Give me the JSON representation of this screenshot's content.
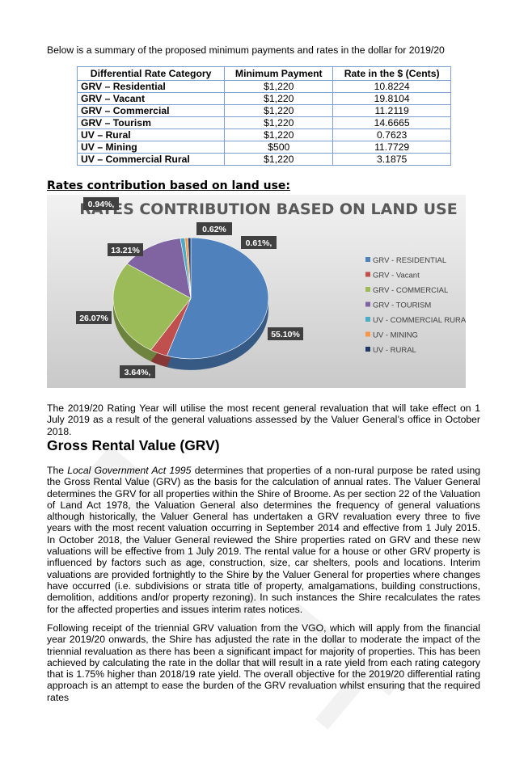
{
  "intro": "Below is a summary of the proposed minimum payments and rates in the dollar for 2019/20",
  "table": {
    "header": [
      "Differential Rate Category",
      "Minimum Payment",
      "Rate in the $ (Cents)"
    ],
    "rows": [
      [
        "GRV – Residential",
        "$1,220",
        "10.8224"
      ],
      [
        "GRV – Vacant",
        "$1,220",
        "19.8104"
      ],
      [
        "GRV – Commercial",
        "$1,220",
        "11.2119"
      ],
      [
        "GRV – Tourism",
        "$1,220",
        "14.6665"
      ],
      [
        "UV – Rural",
        "$1,220",
        "0.7623"
      ],
      [
        "UV – Mining",
        "$500",
        "11.7729"
      ],
      [
        "UV – Commercial Rural",
        "$1,220",
        "3.1875"
      ]
    ]
  },
  "chart_heading": "Rates contribution based on land use:",
  "chart": {
    "type": "pie",
    "title": "RATES CONTRIBUTION BASED ON LAND USE",
    "categories": [
      "GRV - RESIDENTIAL",
      "GRV - Vacant",
      "GRV - COMMERCIAL",
      "GRV - TOURISM",
      "UV - COMMERCIAL RURAL",
      "UV - MINING",
      "UV - RURAL"
    ],
    "values": [
      55.1,
      3.64,
      26.07,
      13.21,
      0.94,
      0.62,
      0.61
    ],
    "value_labels": [
      "55.10%",
      "3.64%,",
      "26.07%",
      "13.21%",
      "0.94%,",
      "0.62%",
      "0.61%,"
    ],
    "colors": [
      "#4f81bd",
      "#c0504d",
      "#9bbb59",
      "#8064a2",
      "#4bacc6",
      "#f79646",
      "#1f3864"
    ],
    "legend": "right"
  },
  "paragraph_1": "The 2019/20 Rating Year will utilise the most recent general revaluation that will take effect on 1 July 2019 as a result of the general valuations assessed by the Valuer General’s office in October 2018.",
  "section_heading": "Gross Rental Value (GRV)",
  "paragraph_2": [
    "The ",
    "Local Government Act 1995",
    " determines that properties of a non-rural purpose be rated using the Gross Rental Value (GRV) as the basis for the calculation of annual rates. The Valuer General determines the GRV for all properties within the Shire of Broome. As per section 22 of the Valuation of Land Act 1978, the Valuation General also determines the frequency of general valuations although historically, the Valuer General has undertaken a GRV revaluation every three to five years with the most recent valuation occurring in September 2014 and effective from 1 July 2015. In October 2018, the Valuer General reviewed the Shire properties rated on GRV and these new valuations will be effective from 1 July 2019. The rental value for a house or other GRV property is influenced by factors such as age, construction, size, car shelters, pools and locations. Interim valuations are provided fortnightly to the Shire by the Valuer General for properties where changes have occurred (i.e. subdivisions or strata title of property, amalgamations, building constructions, demolition, additions and/or property rezoning). In such instances the Shire recalculates the rates for the affected properties and issues interim rates notices."
  ],
  "paragraph_3": "Following receipt of the triennial GRV valuation from the VGO, which will apply from the financial year 2019/20 onwards, the Shire has adjusted the rate in the dollar to moderate the impact of the triennial revaluation as there has been a significant impact for majority of properties. This has been achieved by calculating the rate in the dollar that will result in a rate yield from each rating category that is 1.75% higher than 2018/19 rate yield. The overall objective for the 2019/20 differential rating approach is an attempt to ease the burden of the GRV revaluation whilst ensuring that the required rates",
  "watermark": "DRAFT"
}
